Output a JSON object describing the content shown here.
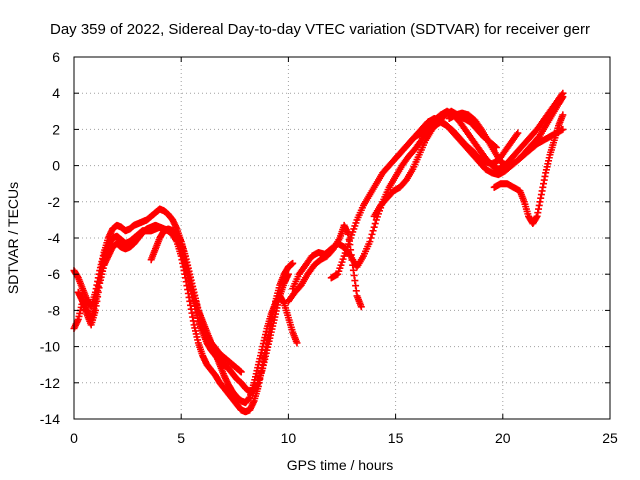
{
  "chart_data": {
    "type": "scatter",
    "title": "Day 359 of 2022, Sidereal Day-to-day VTEC variation (SDTVAR) for receiver gerr",
    "xlabel": "GPS time / hours",
    "ylabel": "SDTVAR / TECUs",
    "xlim": [
      0,
      25
    ],
    "ylim": [
      -14,
      6
    ],
    "xticks": [
      0,
      5,
      10,
      15,
      20,
      25
    ],
    "yticks": [
      -14,
      -12,
      -10,
      -8,
      -6,
      -4,
      -2,
      0,
      2,
      4,
      6
    ],
    "grid": true,
    "marker": "+",
    "color": "#ff0000",
    "series": [
      {
        "x": [
          0.0,
          0.2,
          0.4,
          0.6,
          0.8,
          1.0,
          1.2,
          1.4,
          1.6,
          1.8,
          2.0,
          2.2,
          2.4,
          2.6,
          2.8,
          3.0,
          3.2,
          3.4,
          3.6,
          3.8,
          4.0,
          4.2,
          4.4,
          4.6,
          4.8,
          5.0,
          5.2,
          5.4,
          5.6,
          5.8,
          6.0,
          6.2,
          6.4,
          6.6,
          6.8,
          7.0,
          7.2,
          7.4,
          7.6,
          7.8,
          8.0,
          8.2,
          8.4,
          8.6,
          8.8,
          9.0,
          9.2,
          9.4,
          9.6,
          9.8,
          10.0,
          10.2
        ],
        "y": [
          -9.0,
          -8.5,
          -7.5,
          -8.2,
          -8.8,
          -8.0,
          -6.5,
          -5.5,
          -5.0,
          -4.5,
          -4.3,
          -4.5,
          -4.6,
          -4.5,
          -4.3,
          -4.0,
          -3.7,
          -3.5,
          -3.4,
          -3.3,
          -3.4,
          -3.5,
          -3.6,
          -3.8,
          -4.2,
          -5.0,
          -6.2,
          -7.5,
          -8.8,
          -9.8,
          -10.5,
          -11.0,
          -11.3,
          -11.6,
          -12.0,
          -12.3,
          -12.6,
          -12.9,
          -13.2,
          -13.5,
          -13.6,
          -13.5,
          -13.0,
          -12.2,
          -11.0,
          -9.8,
          -8.6,
          -7.5,
          -6.6,
          -6.0,
          -5.6,
          -5.4
        ]
      },
      {
        "x": [
          0.0,
          0.2,
          0.4,
          0.6,
          0.8,
          1.0,
          1.2,
          1.4,
          1.6,
          1.8,
          2.0,
          2.2,
          2.4,
          2.6,
          2.8,
          3.0,
          3.2,
          3.4,
          3.6,
          3.8,
          4.0,
          4.2,
          4.4,
          4.6,
          4.8,
          5.0,
          5.2,
          5.4,
          5.6,
          5.8,
          6.0,
          6.2,
          6.4,
          6.6,
          6.8,
          7.0,
          7.2,
          7.4,
          7.6,
          7.8,
          8.0,
          8.2,
          8.4,
          8.6,
          8.8,
          9.0,
          9.2,
          9.4,
          9.6,
          9.8,
          10.0,
          10.2,
          10.4
        ],
        "y": [
          -5.8,
          -6.2,
          -6.8,
          -7.4,
          -7.8,
          -7.0,
          -5.8,
          -4.8,
          -4.0,
          -3.5,
          -3.3,
          -3.4,
          -3.6,
          -3.5,
          -3.3,
          -3.2,
          -3.1,
          -3.0,
          -2.8,
          -2.6,
          -2.4,
          -2.5,
          -2.7,
          -3.0,
          -3.5,
          -4.2,
          -5.2,
          -6.2,
          -7.2,
          -8.0,
          -8.6,
          -9.2,
          -9.8,
          -10.4,
          -11.0,
          -11.6,
          -12.1,
          -12.5,
          -12.8,
          -13.0,
          -13.1,
          -12.8,
          -12.0,
          -11.0,
          -10.0,
          -9.0,
          -8.2,
          -7.6,
          -7.2,
          -7.6,
          -8.4,
          -9.2,
          -9.8
        ]
      },
      {
        "x": [
          0.2,
          0.4,
          0.6,
          0.8,
          1.0,
          1.2,
          1.4,
          1.6,
          1.8,
          2.0,
          2.2,
          2.4,
          2.6,
          2.8,
          3.0,
          3.2,
          3.4,
          3.6,
          3.8,
          4.0,
          4.2,
          4.4,
          4.6,
          4.8,
          5.0,
          5.2,
          5.4,
          5.6,
          5.8,
          6.0,
          6.2,
          6.4,
          6.6,
          6.8,
          7.0,
          7.2,
          7.4,
          7.6,
          7.8,
          8.0,
          8.2,
          8.4,
          8.6,
          8.8,
          9.0,
          9.2,
          9.4,
          9.6,
          9.8,
          10.0
        ],
        "y": [
          -7.0,
          -7.5,
          -8.0,
          -8.5,
          -7.6,
          -6.2,
          -5.0,
          -4.4,
          -4.0,
          -3.9,
          -4.1,
          -4.3,
          -4.2,
          -4.0,
          -3.8,
          -3.6,
          -3.6,
          -3.6,
          -3.5,
          -3.4,
          -3.5,
          -3.6,
          -3.8,
          -4.0,
          -4.6,
          -5.6,
          -6.6,
          -7.6,
          -8.6,
          -9.2,
          -9.8,
          -10.2,
          -10.5,
          -10.8,
          -11.0,
          -11.2,
          -11.5,
          -11.8,
          -12.0,
          -12.3,
          -12.5,
          -12.4,
          -12.0,
          -11.2,
          -10.2,
          -9.2,
          -8.2,
          -7.2,
          -6.5,
          -6.0
        ]
      },
      {
        "x": [
          3.6,
          3.8,
          4.0,
          4.2,
          4.4,
          4.6,
          4.8,
          5.0,
          5.2,
          5.4,
          5.6,
          5.8,
          6.0,
          6.2,
          6.4,
          6.6,
          6.8,
          7.0,
          7.2,
          7.4,
          7.6,
          7.8
        ],
        "y": [
          -5.2,
          -4.6,
          -4.0,
          -3.6,
          -3.5,
          -3.6,
          -3.8,
          -4.2,
          -5.0,
          -6.0,
          -7.0,
          -8.0,
          -8.8,
          -9.4,
          -9.8,
          -10.1,
          -10.4,
          -10.6,
          -10.8,
          -11.0,
          -11.2,
          -11.4
        ]
      },
      {
        "x": [
          10.0,
          10.3,
          10.6,
          10.9,
          11.2,
          11.5,
          11.8,
          12.1,
          12.4,
          12.6,
          12.8,
          13.0,
          13.2,
          13.4
        ],
        "y": [
          -7.5,
          -7.0,
          -6.6,
          -6.0,
          -5.5,
          -5.2,
          -5.0,
          -4.6,
          -4.0,
          -3.3,
          -3.8,
          -5.5,
          -7.2,
          -7.8
        ]
      },
      {
        "x": [
          10.2,
          10.5,
          10.8,
          11.1,
          11.4,
          11.7,
          12.0,
          12.3,
          12.6,
          12.9,
          13.2,
          13.5,
          13.8,
          14.1,
          14.4,
          14.7,
          15.0,
          15.3,
          15.6,
          15.9,
          16.2,
          16.5,
          16.8,
          17.1,
          17.4,
          17.7,
          18.0,
          18.3,
          18.6,
          18.9,
          19.2,
          19.5,
          19.8,
          20.1,
          20.4,
          20.7,
          21.0,
          21.3,
          21.6,
          21.9,
          22.2,
          22.5,
          22.8
        ],
        "y": [
          -6.8,
          -6.0,
          -5.5,
          -5.0,
          -4.8,
          -4.9,
          -4.6,
          -4.3,
          -4.5,
          -5.0,
          -5.6,
          -5.0,
          -4.2,
          -3.0,
          -2.0,
          -1.2,
          -0.6,
          0.0,
          0.5,
          0.9,
          1.4,
          2.0,
          2.5,
          2.8,
          3.0,
          2.8,
          2.4,
          1.9,
          1.4,
          0.9,
          0.4,
          0.0,
          -0.2,
          0.0,
          0.4,
          0.8,
          1.2,
          1.6,
          2.0,
          2.5,
          3.0,
          3.5,
          4.0
        ]
      },
      {
        "x": [
          12.0,
          12.3,
          12.6,
          12.9,
          13.2,
          13.5,
          13.8,
          14.1,
          14.4,
          14.7,
          15.0,
          15.3,
          15.6,
          15.9,
          16.2,
          16.5,
          16.8,
          17.1,
          17.4,
          17.7,
          18.0,
          18.3,
          18.6,
          18.9,
          19.2,
          19.5,
          19.8,
          20.1,
          20.4,
          20.7,
          21.0,
          21.3,
          21.6,
          21.9,
          22.2,
          22.5,
          22.8
        ],
        "y": [
          -6.2,
          -6.0,
          -5.0,
          -4.0,
          -3.0,
          -2.2,
          -1.6,
          -1.0,
          -0.4,
          0.0,
          0.4,
          0.8,
          1.2,
          1.6,
          2.0,
          2.4,
          2.6,
          2.5,
          2.2,
          1.8,
          1.4,
          1.0,
          0.6,
          0.2,
          -0.2,
          -0.4,
          -0.5,
          -0.3,
          0.0,
          0.3,
          0.6,
          0.9,
          1.2,
          1.4,
          1.6,
          1.8,
          2.0
        ]
      },
      {
        "x": [
          14.0,
          14.3,
          14.6,
          14.9,
          15.2,
          15.5,
          15.8,
          16.1,
          16.4,
          16.7,
          17.0,
          17.3,
          17.6,
          17.9,
          18.2,
          18.5,
          18.8,
          19.1,
          19.4,
          19.7
        ],
        "y": [
          -2.8,
          -2.2,
          -1.8,
          -1.4,
          -1.2,
          -0.8,
          -0.2,
          0.6,
          1.4,
          2.0,
          2.4,
          2.8,
          3.0,
          2.8,
          2.6,
          2.4,
          2.0,
          1.6,
          1.3,
          1.0
        ]
      },
      {
        "x": [
          15.0,
          15.3,
          15.6,
          15.9,
          16.2,
          16.5,
          16.8,
          17.1,
          17.4,
          17.7,
          18.0,
          18.3,
          18.6,
          18.9,
          19.2,
          19.5,
          19.8,
          20.1,
          20.4,
          20.7
        ],
        "y": [
          0.4,
          0.8,
          1.2,
          1.6,
          1.8,
          2.0,
          2.2,
          2.4,
          2.2,
          1.9,
          1.5,
          1.1,
          0.8,
          0.4,
          0.2,
          0.1,
          0.3,
          0.8,
          1.3,
          1.8
        ]
      },
      {
        "x": [
          19.6,
          19.9,
          20.2,
          20.5,
          20.8,
          21.0,
          21.2,
          21.4,
          21.6,
          21.8,
          22.0,
          22.2,
          22.4,
          22.6,
          22.8
        ],
        "y": [
          -1.2,
          -1.0,
          -1.0,
          -1.2,
          -1.4,
          -2.0,
          -2.8,
          -3.2,
          -2.8,
          -1.6,
          -0.4,
          0.6,
          1.4,
          2.2,
          2.8
        ]
      },
      {
        "x": [
          17.5,
          17.8,
          18.1,
          18.4,
          18.7,
          19.0,
          19.3,
          19.6,
          19.9,
          20.2,
          20.5,
          20.8,
          21.1,
          21.4,
          21.7,
          22.0,
          22.3,
          22.6,
          22.8
        ],
        "y": [
          2.6,
          2.8,
          2.9,
          2.8,
          2.5,
          2.0,
          1.4,
          0.8,
          0.2,
          0.0,
          0.1,
          0.4,
          0.8,
          1.2,
          1.6,
          2.2,
          2.8,
          3.4,
          3.8
        ]
      }
    ]
  }
}
